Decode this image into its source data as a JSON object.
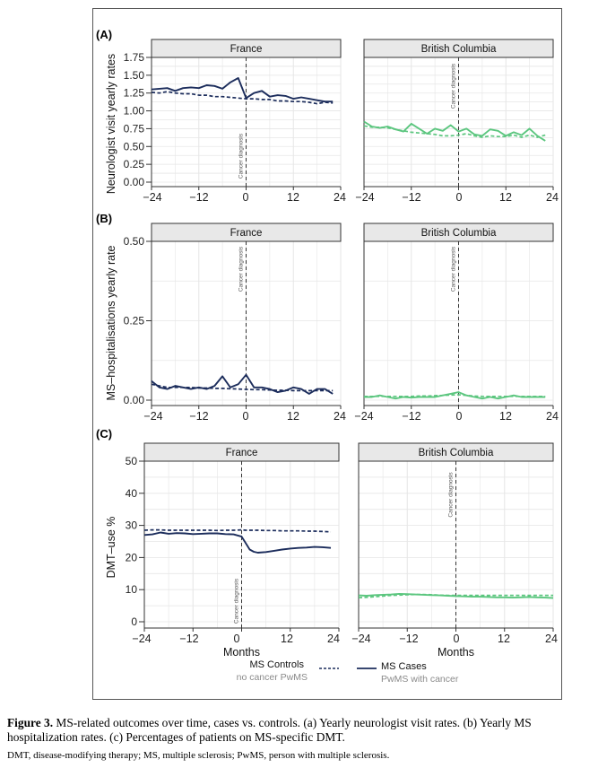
{
  "figure": {
    "panels": [
      {
        "id": "A",
        "label": "(A)",
        "ylabel": "Neurologist visit yearly rates"
      },
      {
        "id": "B",
        "label": "(B)",
        "ylabel": "MS–hospitalisations yearly rate"
      },
      {
        "id": "C",
        "label": "(C)",
        "ylabel": "DMT–use %"
      }
    ],
    "facets": [
      "France",
      "British Columbia"
    ],
    "xlabel": "Months",
    "annotation": "Cancer diagnosis",
    "legend": {
      "controls": {
        "line1": "MS Controls",
        "line2": "no cancer PwMS"
      },
      "cases": {
        "line1": "MS Cases",
        "line2": "PwMS with cancer"
      }
    }
  },
  "colors": {
    "france": "#1c2d5c",
    "bc": "#5cc67f",
    "grid": "#e6e6e6",
    "strip": "#e8e8e8",
    "gray": "#8a8a8a"
  },
  "caption": {
    "label": "Figure 3.",
    "text": " MS-related outcomes over time, cases vs. controls. (a) Yearly neurologist visit rates. (b) Yearly MS hospitalization rates. (c) Percentages of patients on MS-specific DMT.",
    "footnote": "DMT, disease-modifying therapy; MS, multiple sclerosis; PwMS, person with multiple sclerosis."
  },
  "chart_data": [
    {
      "type": "line",
      "panel": "A",
      "title": "(A)",
      "xlabel": "",
      "ylabel": "Neurologist visit yearly rates",
      "xlim": [
        -24,
        24
      ],
      "ylim": [
        0,
        1.75
      ],
      "xticks": [
        -24,
        -12,
        0,
        12,
        24
      ],
      "yticks": [
        0,
        0.25,
        0.5,
        0.75,
        1,
        1.25,
        1.5,
        1.75
      ],
      "ytick_labels": [
        "0.00",
        "0.25",
        "0.50",
        "0.75",
        "1.00",
        "1.25",
        "1.50",
        "1.75"
      ],
      "facets": [
        {
          "name": "France",
          "x": [
            -24,
            -22,
            -20,
            -18,
            -16,
            -14,
            -12,
            -10,
            -8,
            -6,
            -4,
            -2,
            0,
            2,
            4,
            6,
            8,
            10,
            12,
            14,
            16,
            18,
            20,
            22
          ],
          "series": [
            {
              "name": "MS Cases",
              "values": [
                1.3,
                1.31,
                1.32,
                1.28,
                1.32,
                1.33,
                1.32,
                1.36,
                1.35,
                1.31,
                1.4,
                1.46,
                1.18,
                1.25,
                1.28,
                1.2,
                1.22,
                1.21,
                1.17,
                1.19,
                1.17,
                1.15,
                1.13,
                1.13
              ]
            },
            {
              "name": "MS Controls",
              "values": [
                1.26,
                1.25,
                1.27,
                1.25,
                1.24,
                1.24,
                1.22,
                1.22,
                1.2,
                1.2,
                1.19,
                1.18,
                1.17,
                1.17,
                1.16,
                1.16,
                1.14,
                1.14,
                1.13,
                1.13,
                1.12,
                1.1,
                1.12,
                1.11
              ]
            }
          ]
        },
        {
          "name": "British Columbia",
          "x": [
            -24,
            -22,
            -20,
            -18,
            -16,
            -14,
            -12,
            -10,
            -8,
            -6,
            -4,
            -2,
            0,
            2,
            4,
            6,
            8,
            10,
            12,
            14,
            16,
            18,
            20,
            22
          ],
          "series": [
            {
              "name": "MS Cases",
              "values": [
                0.85,
                0.78,
                0.76,
                0.78,
                0.74,
                0.71,
                0.82,
                0.75,
                0.68,
                0.75,
                0.72,
                0.8,
                0.71,
                0.75,
                0.67,
                0.65,
                0.74,
                0.72,
                0.65,
                0.7,
                0.66,
                0.75,
                0.65,
                0.58
              ]
            },
            {
              "name": "MS Controls",
              "values": [
                0.79,
                0.77,
                0.77,
                0.76,
                0.74,
                0.72,
                0.7,
                0.69,
                0.68,
                0.67,
                0.65,
                0.65,
                0.66,
                0.68,
                0.65,
                0.63,
                0.65,
                0.64,
                0.64,
                0.66,
                0.63,
                0.66,
                0.63,
                0.66
              ]
            }
          ]
        }
      ]
    },
    {
      "type": "line",
      "panel": "B",
      "title": "(B)",
      "xlabel": "",
      "ylabel": "MS–hospitalisations yearly rate",
      "xlim": [
        -24,
        24
      ],
      "ylim": [
        0,
        0.5
      ],
      "xticks": [
        -24,
        -12,
        0,
        12,
        24
      ],
      "yticks": [
        0,
        0.25,
        0.5
      ],
      "ytick_labels": [
        "0.00",
        "0.25",
        "0.50"
      ],
      "facets": [
        {
          "name": "France",
          "x": [
            -24,
            -22,
            -20,
            -18,
            -16,
            -14,
            -12,
            -10,
            -8,
            -6,
            -4,
            -2,
            0,
            2,
            4,
            6,
            8,
            10,
            12,
            14,
            16,
            18,
            20,
            22
          ],
          "series": [
            {
              "name": "MS Cases",
              "values": [
                0.06,
                0.04,
                0.035,
                0.045,
                0.04,
                0.035,
                0.04,
                0.035,
                0.045,
                0.075,
                0.04,
                0.05,
                0.08,
                0.04,
                0.04,
                0.035,
                0.025,
                0.03,
                0.04,
                0.035,
                0.02,
                0.035,
                0.035,
                0.02
              ]
            },
            {
              "name": "MS Controls",
              "values": [
                0.05,
                0.045,
                0.04,
                0.04,
                0.04,
                0.04,
                0.038,
                0.038,
                0.037,
                0.037,
                0.036,
                0.035,
                0.034,
                0.033,
                0.033,
                0.032,
                0.031,
                0.031,
                0.03,
                0.03,
                0.03,
                0.03,
                0.03,
                0.03
              ]
            }
          ]
        },
        {
          "name": "British Columbia",
          "x": [
            -24,
            -22,
            -20,
            -18,
            -16,
            -14,
            -12,
            -10,
            -8,
            -6,
            -4,
            -2,
            0,
            2,
            4,
            6,
            8,
            10,
            12,
            14,
            16,
            18,
            20,
            22
          ],
          "series": [
            {
              "name": "MS Cases",
              "values": [
                0.01,
                0.01,
                0.015,
                0.01,
                0.005,
                0.01,
                0.008,
                0.01,
                0.01,
                0.01,
                0.015,
                0.02,
                0.025,
                0.015,
                0.01,
                0.005,
                0.01,
                0.005,
                0.01,
                0.015,
                0.01,
                0.01,
                0.01,
                0.01
              ]
            },
            {
              "name": "MS Controls",
              "values": [
                0.012,
                0.012,
                0.012,
                0.012,
                0.012,
                0.012,
                0.012,
                0.013,
                0.013,
                0.014,
                0.015,
                0.016,
                0.017,
                0.015,
                0.013,
                0.012,
                0.012,
                0.012,
                0.012,
                0.012,
                0.012,
                0.012,
                0.012,
                0.012
              ]
            }
          ]
        }
      ]
    },
    {
      "type": "line",
      "panel": "C",
      "title": "(C)",
      "xlabel": "Months",
      "ylabel": "DMT–use %",
      "xlim": [
        -24,
        24
      ],
      "ylim": [
        0,
        50
      ],
      "xticks": [
        -24,
        -12,
        0,
        12,
        24
      ],
      "yticks": [
        0,
        10,
        20,
        30,
        40,
        50
      ],
      "ytick_labels": [
        "0",
        "10",
        "20",
        "30",
        "40",
        "50"
      ],
      "facets": [
        {
          "name": "France",
          "x": [
            -24,
            -22,
            -20,
            -18,
            -16,
            -14,
            -12,
            -10,
            -8,
            -6,
            -4,
            -2,
            0,
            1,
            2,
            3,
            4,
            6,
            8,
            10,
            12,
            14,
            16,
            18,
            20,
            22
          ],
          "series": [
            {
              "name": "MS Cases",
              "values": [
                27,
                27.2,
                27.8,
                27.4,
                27.6,
                27.5,
                27.3,
                27.4,
                27.5,
                27.5,
                27.3,
                27.2,
                26.5,
                24.5,
                22.5,
                21.8,
                21.5,
                21.7,
                22.1,
                22.5,
                22.8,
                23,
                23.1,
                23.3,
                23.2,
                23
              ]
            },
            {
              "name": "MS Controls",
              "values": [
                28.5,
                28.6,
                28.6,
                28.5,
                28.5,
                28.5,
                28.5,
                28.5,
                28.5,
                28.4,
                28.5,
                28.5,
                28.6,
                28.5,
                28.5,
                28.5,
                28.5,
                28.4,
                28.4,
                28.3,
                28.3,
                28.3,
                28.2,
                28.2,
                28.1,
                28
              ]
            }
          ]
        },
        {
          "name": "British Columbia",
          "x": [
            -24,
            -22,
            -20,
            -18,
            -16,
            -14,
            -12,
            -10,
            -8,
            -6,
            -4,
            -2,
            0,
            2,
            4,
            6,
            8,
            10,
            12,
            14,
            16,
            18,
            20,
            22,
            24
          ],
          "series": [
            {
              "name": "MS Cases",
              "values": [
                8.2,
                8.1,
                8.3,
                8.4,
                8.5,
                8.7,
                8.6,
                8.5,
                8.4,
                8.3,
                8.2,
                8.1,
                8,
                7.9,
                7.8,
                7.8,
                7.7,
                7.6,
                7.6,
                7.5,
                7.6,
                7.7,
                7.6,
                7.5,
                7.4
              ]
            },
            {
              "name": "MS Controls",
              "values": [
                7.5,
                7.6,
                7.8,
                8,
                8.2,
                8.3,
                8.4,
                8.5,
                8.5,
                8.4,
                8.3,
                8.2,
                8.2,
                8.2,
                8.2,
                8.2,
                8.2,
                8.2,
                8.2,
                8.2,
                8.2,
                8.2,
                8.2,
                8.2,
                8.2
              ]
            }
          ]
        }
      ]
    }
  ]
}
